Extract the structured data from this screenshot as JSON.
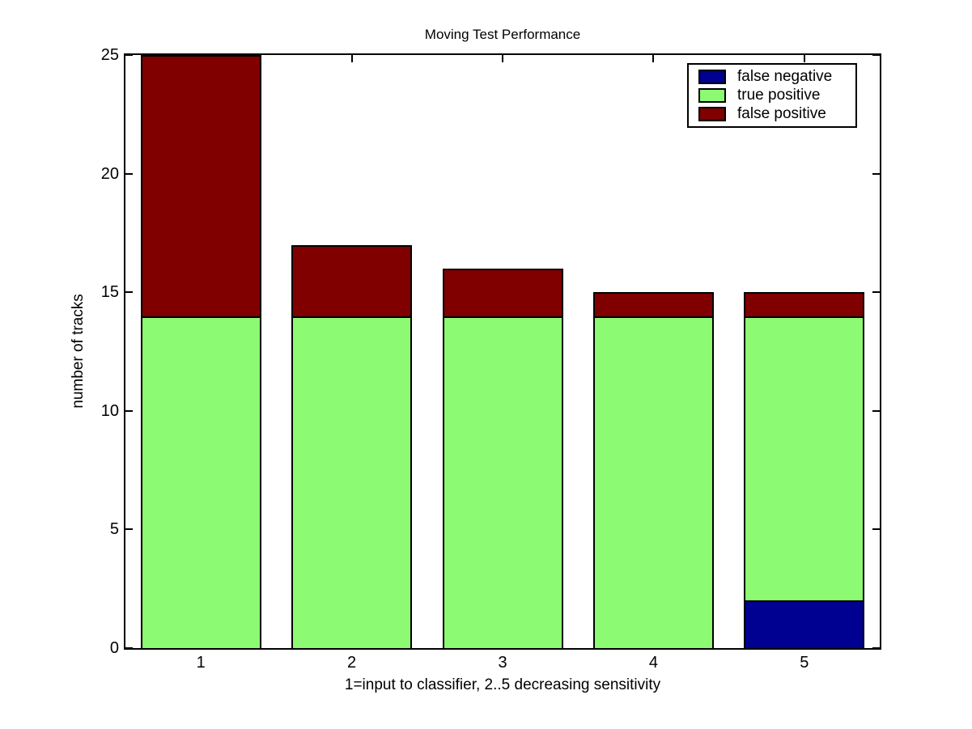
{
  "figure": {
    "background": "#ffffff",
    "axis_color": "#000000"
  },
  "chart_data": {
    "type": "bar",
    "stacked": true,
    "title": "Moving Test Performance",
    "xlabel": "1=input to classifier, 2..5 decreasing sensitivity",
    "ylabel": "number of tracks",
    "categories": [
      "1",
      "2",
      "3",
      "4",
      "5"
    ],
    "series": [
      {
        "name": "false negative",
        "color": "#000091",
        "values": [
          0,
          0,
          0,
          0,
          2
        ]
      },
      {
        "name": "true positive",
        "color": "#8CFA73",
        "values": [
          14,
          14,
          14,
          14,
          12
        ]
      },
      {
        "name": "false positive",
        "color": "#800000",
        "values": [
          11,
          3,
          2,
          1,
          1
        ]
      }
    ],
    "totals": [
      25,
      17,
      16,
      15,
      15
    ],
    "ylim": [
      0,
      25
    ],
    "yticks": [
      0,
      5,
      10,
      15,
      20,
      25
    ],
    "grid": false,
    "legend_position": "top-right"
  }
}
